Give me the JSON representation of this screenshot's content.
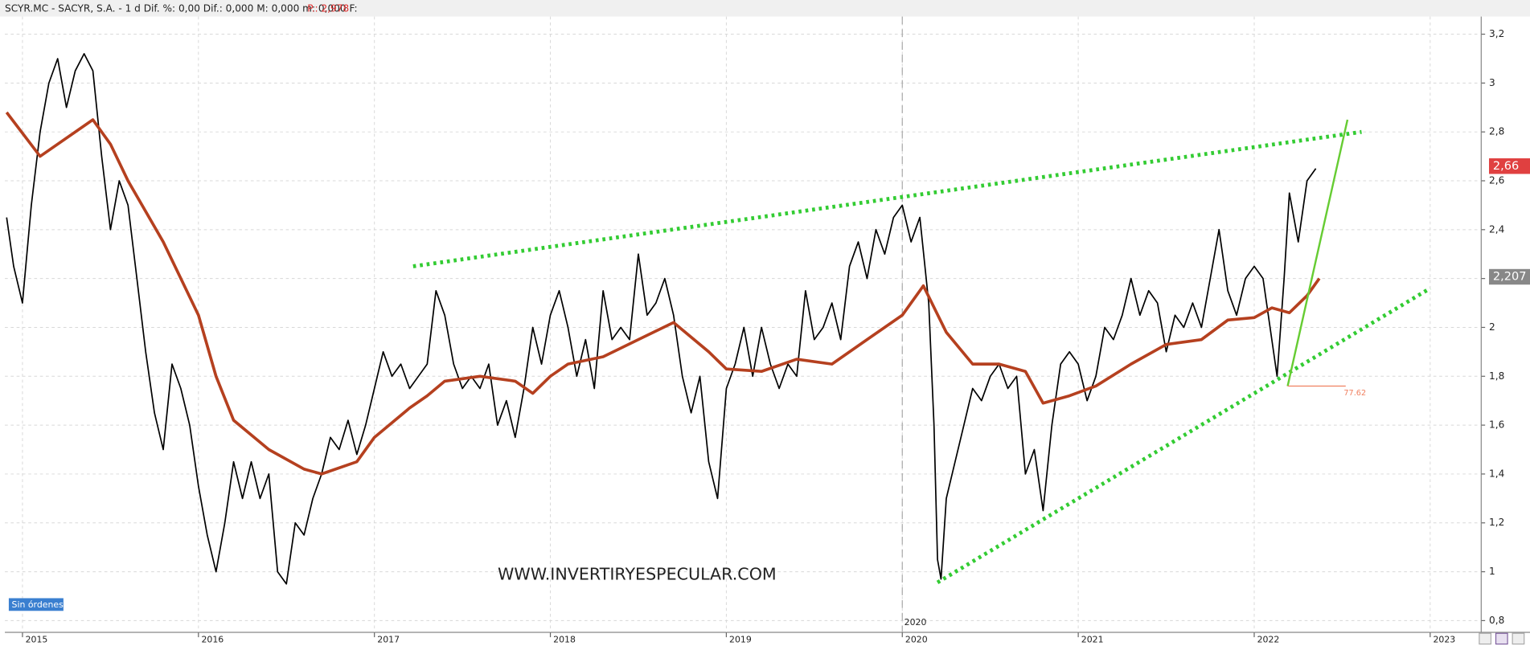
{
  "chart_data": {
    "type": "line",
    "title": "SCYR.MC - SACYR, S.A. -  1 d  Dif. %: 0,00  Dif.: 0,000  M: 0,000  m: 0,000  F:",
    "title_price": "P.: 2,978",
    "watermark": "WWW.INVERTIRYESPECULAR.COM",
    "status_label": "Sin órdenes",
    "marker_label": "2020",
    "marker_x": 2020.0,
    "xlim": [
      2014.9,
      2023.29
    ],
    "ylim": [
      0.752,
      3.272
    ],
    "xticks": [
      2015,
      2016,
      2017,
      2018,
      2019,
      2020,
      2021,
      2022,
      2023
    ],
    "yticks": [
      {
        "value": 0.8,
        "label": "0,8"
      },
      1,
      {
        "value": 1.2,
        "label": "1,2"
      },
      {
        "value": 1.4,
        "label": "1,4"
      },
      {
        "value": 1.6,
        "label": "1,6"
      },
      {
        "value": 1.8,
        "label": "1,8"
      },
      2,
      {
        "value": 2.2,
        "label": "2,2"
      },
      {
        "value": 2.4,
        "label": "2,4"
      },
      {
        "value": 2.6,
        "label": "2,6"
      },
      {
        "value": 2.8,
        "label": "2,8"
      },
      3,
      {
        "value": 3.2,
        "label": "3,2"
      }
    ],
    "grid": true,
    "series": [
      {
        "color": "#000000",
        "x": [
          2014.91,
          2014.95,
          2015.0,
          2015.05,
          2015.1,
          2015.15,
          2015.2,
          2015.25,
          2015.3,
          2015.35,
          2015.4,
          2015.45,
          2015.5,
          2015.55,
          2015.6,
          2015.65,
          2015.7,
          2015.75,
          2015.8,
          2015.85,
          2015.9,
          2015.95,
          2016.0,
          2016.05,
          2016.1,
          2016.15,
          2016.2,
          2016.25,
          2016.3,
          2016.35,
          2016.4,
          2016.45,
          2016.5,
          2016.55,
          2016.6,
          2016.65,
          2016.7,
          2016.75,
          2016.8,
          2016.85,
          2016.9,
          2016.95,
          2017.0,
          2017.05,
          2017.1,
          2017.15,
          2017.2,
          2017.25,
          2017.3,
          2017.35,
          2017.4,
          2017.45,
          2017.5,
          2017.55,
          2017.6,
          2017.65,
          2017.7,
          2017.75,
          2017.8,
          2017.85,
          2017.9,
          2017.95,
          2018.0,
          2018.05,
          2018.1,
          2018.15,
          2018.2,
          2018.25,
          2018.3,
          2018.35,
          2018.4,
          2018.45,
          2018.5,
          2018.55,
          2018.6,
          2018.65,
          2018.7,
          2018.75,
          2018.8,
          2018.85,
          2018.9,
          2018.95,
          2019.0,
          2019.05,
          2019.1,
          2019.15,
          2019.2,
          2019.25,
          2019.3,
          2019.35,
          2019.4,
          2019.45,
          2019.5,
          2019.55,
          2019.6,
          2019.65,
          2019.7,
          2019.75,
          2019.8,
          2019.85,
          2019.9,
          2019.95,
          2020.0,
          2020.05,
          2020.1,
          2020.15,
          2020.18,
          2020.2,
          2020.22,
          2020.25,
          2020.3,
          2020.35,
          2020.4,
          2020.45,
          2020.5,
          2020.55,
          2020.6,
          2020.65,
          2020.7,
          2020.75,
          2020.8,
          2020.85,
          2020.9,
          2020.95,
          2021.0,
          2021.05,
          2021.1,
          2021.15,
          2021.2,
          2021.25,
          2021.3,
          2021.35,
          2021.4,
          2021.45,
          2021.5,
          2021.55,
          2021.6,
          2021.65,
          2021.7,
          2021.75,
          2021.8,
          2021.85,
          2021.9,
          2021.95,
          2022.0,
          2022.05,
          2022.1,
          2022.13,
          2022.17,
          2022.2,
          2022.25,
          2022.3,
          2022.35
        ],
        "values": [
          2.45,
          2.25,
          2.1,
          2.5,
          2.8,
          3.0,
          3.1,
          2.9,
          3.05,
          3.12,
          3.05,
          2.7,
          2.4,
          2.6,
          2.5,
          2.2,
          1.9,
          1.65,
          1.5,
          1.85,
          1.75,
          1.6,
          1.35,
          1.15,
          1.0,
          1.2,
          1.45,
          1.3,
          1.45,
          1.3,
          1.4,
          1.0,
          0.95,
          1.2,
          1.15,
          1.3,
          1.4,
          1.55,
          1.5,
          1.62,
          1.48,
          1.6,
          1.75,
          1.9,
          1.8,
          1.85,
          1.75,
          1.8,
          1.85,
          2.15,
          2.05,
          1.85,
          1.75,
          1.8,
          1.75,
          1.85,
          1.6,
          1.7,
          1.55,
          1.75,
          2.0,
          1.85,
          2.05,
          2.15,
          2.0,
          1.8,
          1.95,
          1.75,
          2.15,
          1.95,
          2.0,
          1.95,
          2.3,
          2.05,
          2.1,
          2.2,
          2.05,
          1.8,
          1.65,
          1.8,
          1.45,
          1.3,
          1.75,
          1.85,
          2.0,
          1.8,
          2.0,
          1.85,
          1.75,
          1.85,
          1.8,
          2.15,
          1.95,
          2.0,
          2.1,
          1.95,
          2.25,
          2.35,
          2.2,
          2.4,
          2.3,
          2.45,
          2.5,
          2.35,
          2.45,
          2.1,
          1.6,
          1.05,
          0.97,
          1.3,
          1.45,
          1.6,
          1.75,
          1.7,
          1.8,
          1.85,
          1.75,
          1.8,
          1.4,
          1.5,
          1.25,
          1.6,
          1.85,
          1.9,
          1.85,
          1.7,
          1.8,
          2.0,
          1.95,
          2.05,
          2.2,
          2.05,
          2.15,
          2.1,
          1.9,
          2.05,
          2.0,
          2.1,
          2.0,
          2.2,
          2.4,
          2.15,
          2.05,
          2.2,
          2.25,
          2.2,
          1.95,
          1.8,
          2.2,
          2.55,
          2.35,
          2.6,
          2.65
        ]
      },
      {
        "color": "#b5401f",
        "x": [
          2014.91,
          2015.1,
          2015.3,
          2015.4,
          2015.5,
          2015.6,
          2015.8,
          2016.0,
          2016.1,
          2016.2,
          2016.4,
          2016.6,
          2016.7,
          2016.9,
          2017.0,
          2017.2,
          2017.3,
          2017.4,
          2017.6,
          2017.8,
          2017.9,
          2018.0,
          2018.1,
          2018.3,
          2018.5,
          2018.7,
          2018.9,
          2019.0,
          2019.2,
          2019.4,
          2019.6,
          2019.8,
          2020.0,
          2020.12,
          2020.25,
          2020.4,
          2020.55,
          2020.7,
          2020.8,
          2020.95,
          2021.1,
          2021.3,
          2021.5,
          2021.7,
          2021.85,
          2022.0,
          2022.1,
          2022.2,
          2022.3,
          2022.37
        ],
        "values": [
          2.88,
          2.7,
          2.8,
          2.85,
          2.75,
          2.6,
          2.35,
          2.05,
          1.8,
          1.62,
          1.5,
          1.42,
          1.4,
          1.45,
          1.55,
          1.67,
          1.72,
          1.78,
          1.8,
          1.78,
          1.73,
          1.8,
          1.85,
          1.88,
          1.95,
          2.02,
          1.9,
          1.83,
          1.82,
          1.87,
          1.85,
          1.95,
          2.05,
          2.17,
          1.98,
          1.85,
          1.85,
          1.82,
          1.69,
          1.72,
          1.76,
          1.85,
          1.93,
          1.95,
          2.03,
          2.04,
          2.08,
          2.06,
          2.13,
          2.2
        ]
      }
    ],
    "trendlines": [
      {
        "color": "#33cc33",
        "x": [
          2017.22,
          2022.61
        ],
        "values": [
          2.25,
          2.8
        ]
      },
      {
        "color": "#33cc33",
        "x": [
          2020.2,
          2023.0
        ],
        "values": [
          0.956,
          2.16
        ]
      },
      {
        "color": "#66cc33",
        "x": [
          2022.19,
          2022.53
        ],
        "values": [
          1.76,
          2.85
        ]
      }
    ],
    "level_line": {
      "x": [
        2022.19,
        2022.52
      ],
      "value": 1.76,
      "label": "77.62"
    },
    "price_labels": [
      {
        "value": 2.66,
        "label": "2,66",
        "color": "#e04040"
      },
      {
        "value": 2.207,
        "label": "2,207",
        "color": "#888888"
      }
    ]
  }
}
